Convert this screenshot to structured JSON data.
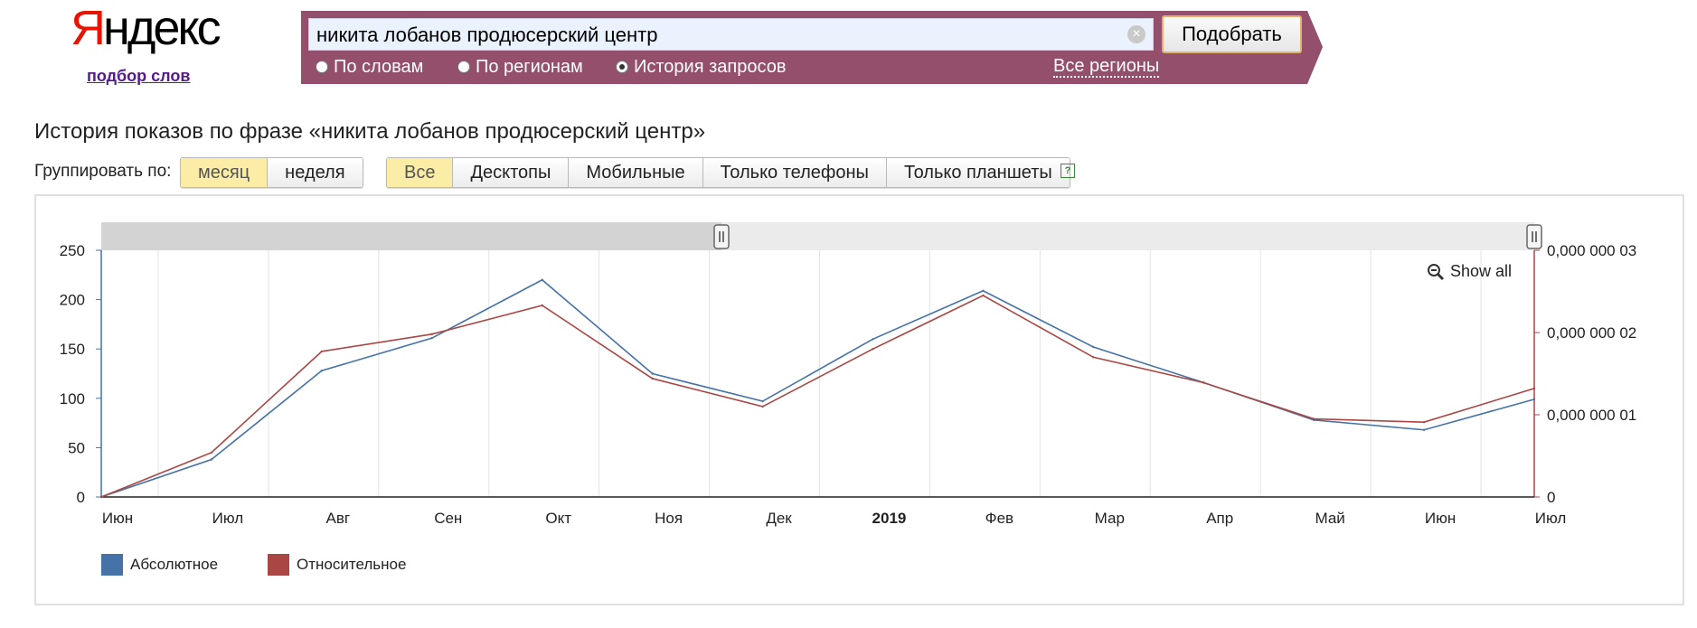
{
  "header": {
    "logo_first": "Я",
    "logo_rest": "ндекс",
    "subtitle": "подбор слов",
    "query": "никита лобанов продюсерский центр",
    "submit_label": "Подобрать",
    "modes": [
      {
        "label": "По словам",
        "selected": false
      },
      {
        "label": "По регионам",
        "selected": false
      },
      {
        "label": "История запросов",
        "selected": true
      }
    ],
    "regions_link": "Все регионы",
    "clear_symbol": "×"
  },
  "page": {
    "title": "История показов по фразе «никита лобанов продюсерский центр»",
    "group_label": "Группировать по:",
    "group_options": [
      {
        "label": "месяц",
        "active": true
      },
      {
        "label": "неделя",
        "active": false
      }
    ],
    "device_options": [
      {
        "label": "Все",
        "active": true
      },
      {
        "label": "Десктопы",
        "active": false
      },
      {
        "label": "Мобильные",
        "active": false
      },
      {
        "label": "Только телефоны",
        "active": false
      },
      {
        "label": "Только планшеты",
        "active": false
      }
    ],
    "help_symbol": "?"
  },
  "chart": {
    "show_all_label": "Show all"
  },
  "chart_data": {
    "type": "line",
    "categories": [
      "Июн",
      "Июл",
      "Авг",
      "Сен",
      "Окт",
      "Ноя",
      "Дек",
      "2019",
      "Фев",
      "Мар",
      "Апр",
      "Май",
      "Июн",
      "Июл"
    ],
    "bold_categories": [
      "2019"
    ],
    "series": [
      {
        "name": "Абсолютное",
        "axis": "left",
        "color": "#4572a7",
        "values": [
          0,
          38,
          128,
          161,
          220,
          125,
          97,
          160,
          209,
          152,
          116,
          78,
          68,
          99
        ]
      },
      {
        "name": "Относительное",
        "axis": "right",
        "color": "#aa4643",
        "values": [
          0,
          5.4e-09,
          1.77e-08,
          1.98e-08,
          2.33e-08,
          1.44e-08,
          1.1e-08,
          1.8e-08,
          2.45e-08,
          1.7e-08,
          1.39e-08,
          9.5e-09,
          9.1e-09,
          1.32e-08
        ]
      }
    ],
    "y_left": {
      "ticks": [
        0,
        50,
        100,
        150,
        200,
        250
      ],
      "tick_labels": [
        "0",
        "50",
        "100",
        "150",
        "200",
        "250"
      ],
      "ylim": [
        0,
        250
      ]
    },
    "y_right": {
      "ticks": [
        0,
        1e-08,
        2e-08,
        3e-08
      ],
      "tick_labels": [
        "0",
        "0,000 000 01",
        "0,000 000 02",
        "0,000 000 03"
      ],
      "ylim": [
        0,
        3e-08
      ]
    },
    "grid": true,
    "legend_placement": "bottom-left"
  }
}
